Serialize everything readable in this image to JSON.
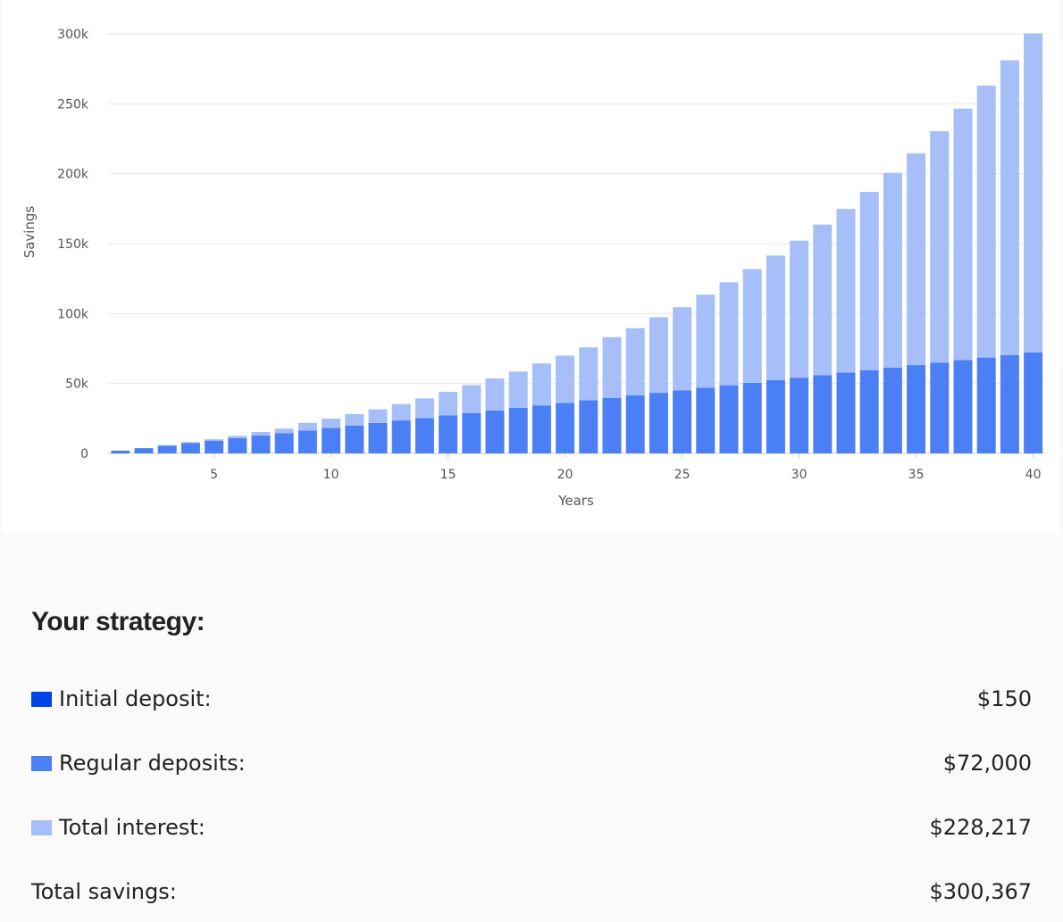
{
  "chart_data": {
    "type": "bar",
    "stacked": true,
    "xlabel": "Years",
    "ylabel": "Savings",
    "ylim": [
      0,
      300000
    ],
    "yticks": [
      0,
      50000,
      100000,
      150000,
      200000,
      250000,
      300000
    ],
    "ytick_labels": [
      "0",
      "50k",
      "100k",
      "150k",
      "200k",
      "250k",
      "300k"
    ],
    "xticks": [
      5,
      10,
      15,
      20,
      25,
      30,
      35,
      40
    ],
    "xtick_labels": [
      "5",
      "10",
      "15",
      "20",
      "25",
      "30",
      "35",
      "40"
    ],
    "grid": true,
    "categories": [
      1,
      2,
      3,
      4,
      5,
      6,
      7,
      8,
      9,
      10,
      11,
      12,
      13,
      14,
      15,
      16,
      17,
      18,
      19,
      20,
      21,
      22,
      23,
      24,
      25,
      26,
      27,
      28,
      29,
      30,
      31,
      32,
      33,
      34,
      35,
      36,
      37,
      38,
      39,
      40
    ],
    "series": [
      {
        "color": "#0043e6",
        "values": [
          150,
          150,
          150,
          150,
          150,
          150,
          150,
          150,
          150,
          150,
          150,
          150,
          150,
          150,
          150,
          150,
          150,
          150,
          150,
          150,
          150,
          150,
          150,
          150,
          150,
          150,
          150,
          150,
          150,
          150,
          150,
          150,
          150,
          150,
          150,
          150,
          150,
          150,
          150,
          150
        ]
      },
      {
        "color": "#4a7ff5",
        "values": [
          1800,
          3600,
          5400,
          7200,
          9000,
          10800,
          12600,
          14400,
          16200,
          18000,
          19800,
          21600,
          23400,
          25200,
          27000,
          28800,
          30600,
          32400,
          34200,
          36000,
          37800,
          39600,
          41400,
          43200,
          45000,
          46800,
          48600,
          50400,
          52200,
          54000,
          55800,
          57600,
          59400,
          61200,
          63000,
          64800,
          66600,
          68400,
          70200,
          72000
        ]
      },
      {
        "color": "#a6bff9",
        "values": [
          0,
          50,
          400,
          800,
          1000,
          1600,
          2600,
          3200,
          5500,
          6800,
          8200,
          9800,
          11800,
          14000,
          16900,
          19900,
          22900,
          26000,
          30000,
          33800,
          37900,
          43400,
          48000,
          54000,
          59400,
          66600,
          73600,
          81300,
          89200,
          98000,
          107700,
          117100,
          127500,
          139300,
          151500,
          165500,
          179800,
          194500,
          210800,
          228217
        ]
      }
    ]
  },
  "summary": {
    "title": "Your strategy:",
    "rows": [
      {
        "label": "Initial deposit:",
        "value": "$150",
        "swatch_color": "#0043e6"
      },
      {
        "label": "Regular deposits:",
        "value": "$72,000",
        "swatch_color": "#4a7ff5"
      },
      {
        "label": "Total interest:",
        "value": "$228,217",
        "swatch_color": "#a6bff9"
      }
    ],
    "total_label": "Total savings:",
    "total_value": "$300,367"
  }
}
